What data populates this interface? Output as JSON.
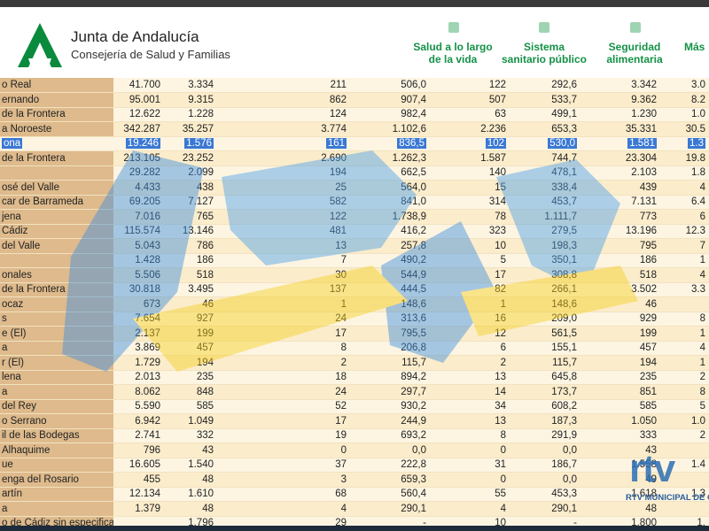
{
  "header": {
    "org": "Junta de Andalucía",
    "department": "Consejería de Salud y Familias",
    "nav": [
      "Salud a lo largo de la vida",
      "Sistema sanitario público",
      "Seguridad alimentaria",
      "Más"
    ]
  },
  "table": {
    "rows": [
      [
        "o Real",
        "41.700",
        "3.334",
        "211",
        "506,0",
        "122",
        "292,6",
        "3.342",
        "3.0"
      ],
      [
        "ernando",
        "95.001",
        "9.315",
        "862",
        "907,4",
        "507",
        "533,7",
        "9.362",
        "8.2"
      ],
      [
        "de la Frontera",
        "12.622",
        "1.228",
        "124",
        "982,4",
        "63",
        "499,1",
        "1.230",
        "1.0"
      ],
      [
        "a Noroeste",
        "342.287",
        "35.257",
        "3.774",
        "1.102,6",
        "2.236",
        "653,3",
        "35.331",
        "30.5"
      ],
      [
        "ona",
        "19.246",
        "1.576",
        "161",
        "836,5",
        "102",
        "530,0",
        "1.581",
        "1.3"
      ],
      [
        "de la Frontera",
        "213.105",
        "23.252",
        "2.690",
        "1.262,3",
        "1.587",
        "744,7",
        "23.304",
        "19.8"
      ],
      [
        null,
        "29.282",
        "2.099",
        "194",
        "662,5",
        "140",
        "478,1",
        "2.103",
        "1.8"
      ],
      [
        "osé del Valle",
        "4.433",
        "438",
        "25",
        "564,0",
        "15",
        "338,4",
        "439",
        "4"
      ],
      [
        "car de Barrameda",
        "69.205",
        "7.127",
        "582",
        "841,0",
        "314",
        "453,7",
        "7.131",
        "6.4"
      ],
      [
        "jena",
        "7.016",
        "765",
        "122",
        "1.738,9",
        "78",
        "1.111,7",
        "773",
        "6"
      ],
      [
        "Cádiz",
        "115.574",
        "13.146",
        "481",
        "416,2",
        "323",
        "279,5",
        "13.196",
        "12.3"
      ],
      [
        "del Valle",
        "5.043",
        "786",
        "13",
        "257,8",
        "10",
        "198,3",
        "795",
        "7"
      ],
      [
        null,
        "1.428",
        "186",
        "7",
        "490,2",
        "5",
        "350,1",
        "186",
        "1"
      ],
      [
        "onales",
        "5.506",
        "518",
        "30",
        "544,9",
        "17",
        "308,8",
        "518",
        "4"
      ],
      [
        "de la Frontera",
        "30.818",
        "3.495",
        "137",
        "444,5",
        "82",
        "266,1",
        "3.502",
        "3.3"
      ],
      [
        "ocaz",
        "673",
        "46",
        "1",
        "148,6",
        "1",
        "148,6",
        "46",
        null
      ],
      [
        "s",
        "7.654",
        "927",
        "24",
        "313,6",
        "16",
        "209,0",
        "929",
        "8"
      ],
      [
        "e (El)",
        "2.137",
        "199",
        "17",
        "795,5",
        "12",
        "561,5",
        "199",
        "1"
      ],
      [
        "a",
        "3.869",
        "457",
        "8",
        "206,8",
        "6",
        "155,1",
        "457",
        "4"
      ],
      [
        "r (El)",
        "1.729",
        "194",
        "2",
        "115,7",
        "2",
        "115,7",
        "194",
        "1"
      ],
      [
        "lena",
        "2.013",
        "235",
        "18",
        "894,2",
        "13",
        "645,8",
        "235",
        "2"
      ],
      [
        "a",
        "8.062",
        "848",
        "24",
        "297,7",
        "14",
        "173,7",
        "851",
        "8"
      ],
      [
        "del Rey",
        "5.590",
        "585",
        "52",
        "930,2",
        "34",
        "608,2",
        "585",
        "5"
      ],
      [
        "o Serrano",
        "6.942",
        "1.049",
        "17",
        "244,9",
        "13",
        "187,3",
        "1.050",
        "1.0"
      ],
      [
        "il de las Bodegas",
        "2.741",
        "332",
        "19",
        "693,2",
        "8",
        "291,9",
        "333",
        "2"
      ],
      [
        "Alhaquime",
        "796",
        "43",
        "0",
        "0,0",
        "0",
        "0,0",
        "43",
        null
      ],
      [
        "ue",
        "16.605",
        "1.540",
        "37",
        "222,8",
        "31",
        "186,7",
        "1.558",
        "1.4"
      ],
      [
        "enga del Rosario",
        "455",
        "48",
        "3",
        "659,3",
        "0",
        "0,0",
        "49",
        null
      ],
      [
        "artín",
        "12.134",
        "1.610",
        "68",
        "560,4",
        "55",
        "453,3",
        "1.618",
        "1.3"
      ],
      [
        "a",
        "1.379",
        "48",
        "4",
        "290,1",
        "4",
        "290,1",
        "48",
        null
      ],
      [
        "o de Cádiz sin especificar",
        null,
        "1.796",
        "29",
        "-",
        "10",
        "-",
        "1.800",
        "1."
      ]
    ],
    "selected_row": 4
  },
  "watermark": {
    "logo": "rtv",
    "caption": "RTV MUNICIPAL DE CH"
  }
}
